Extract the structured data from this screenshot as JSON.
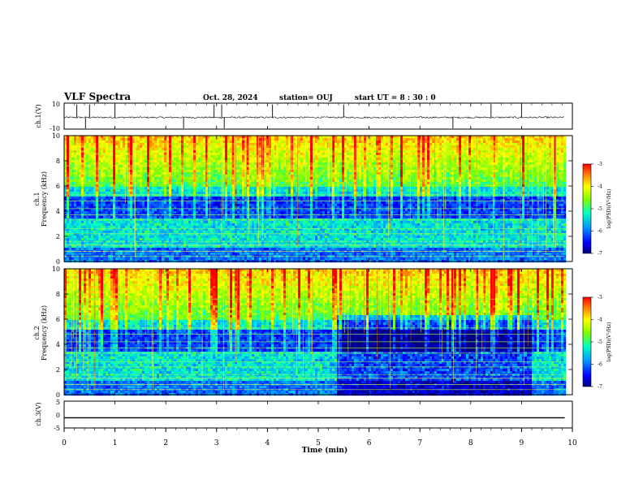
{
  "header": {
    "title": "VLF Spectra",
    "date": "Oct. 28, 2024",
    "station": "station= OUJ",
    "start": "start  UT =   8 : 30 : 0"
  },
  "colors": {
    "spectrum_low": "#00007f",
    "spectrum_mid": "#00c8ff",
    "spectrum_green": "#7fff00",
    "spectrum_high": "#ff0000",
    "trace": "#000000"
  },
  "chart_data": [
    {
      "type": "line",
      "name": "ch1-waveform",
      "ylabel": "ch.1(V)",
      "ylim": [
        -10,
        10
      ],
      "yticks": [
        "10",
        "-10"
      ],
      "x_range_min": [
        0,
        9.85
      ],
      "baseline_v": -1,
      "spike_times_min": [
        0.25,
        0.42,
        0.5,
        1.0,
        2.35,
        2.95,
        3.1,
        3.15,
        4.1,
        5.5,
        7.65,
        8.4,
        9.0
      ]
    },
    {
      "type": "heatmap",
      "name": "ch1-spectrogram",
      "ylabel": "ch.1 Frequency (kHz)",
      "xlim": [
        0,
        10
      ],
      "ylim": [
        0,
        10
      ],
      "yticks": [
        "0",
        "2",
        "4",
        "6",
        "8",
        "10"
      ],
      "data_extent_min": [
        0,
        9.85
      ],
      "colorbar": {
        "label": "log(PSD)(V²/Hz)",
        "range": [
          -7,
          -3
        ],
        "ticks": [
          "-3",
          "-4",
          "-5",
          "-6",
          "-7"
        ]
      }
    },
    {
      "type": "heatmap",
      "name": "ch2-spectrogram",
      "ylabel": "ch.2 Frequency (kHz)",
      "xlim": [
        0,
        10
      ],
      "ylim": [
        0,
        10
      ],
      "yticks": [
        "0",
        "2",
        "4",
        "6",
        "8",
        "10"
      ],
      "data_extent_min": [
        0,
        9.85
      ],
      "quiet_interval_min": [
        5.33,
        9.2
      ],
      "colorbar": {
        "label": "log(PSD)(V²/Hz)",
        "range": [
          -7,
          -3
        ],
        "ticks": [
          "-3",
          "-4",
          "-5",
          "-6",
          "-7"
        ]
      }
    },
    {
      "type": "line",
      "name": "ch3-waveform",
      "ylabel": "ch.3(V)",
      "ylim": [
        -5,
        5
      ],
      "yticks": [
        "5",
        "0",
        "-5"
      ],
      "x_range_min": [
        0,
        9.85
      ],
      "constant_v": -1.2
    }
  ],
  "xaxis": {
    "label": "Time  (min)",
    "ticks": [
      "0",
      "1",
      "2",
      "3",
      "4",
      "5",
      "6",
      "7",
      "8",
      "9",
      "10"
    ]
  }
}
